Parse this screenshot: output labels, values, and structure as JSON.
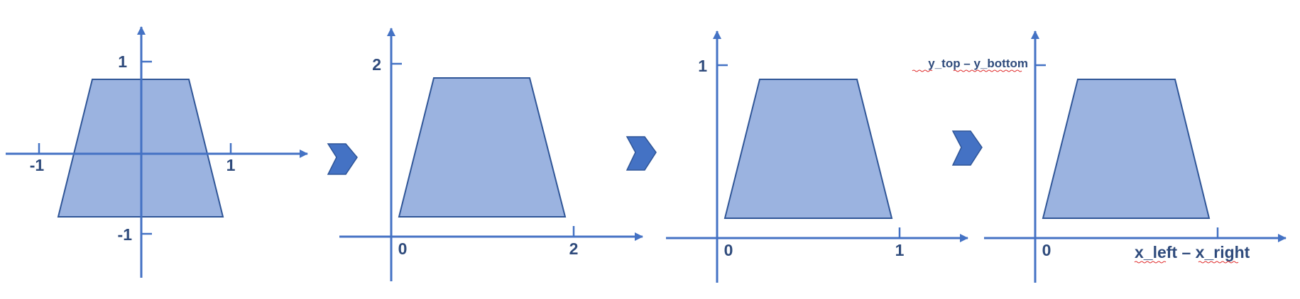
{
  "panels": [
    {
      "name": "panel-1",
      "labels": {
        "y_top": "1",
        "y_bottom": "-1",
        "x_left": "-1",
        "x_right": "1"
      }
    },
    {
      "name": "panel-2",
      "labels": {
        "y_top": "2",
        "origin": "0",
        "x_right": "2"
      }
    },
    {
      "name": "panel-3",
      "labels": {
        "y_top": "1",
        "origin": "0",
        "x_right": "1"
      }
    },
    {
      "name": "panel-4",
      "labels": {
        "y_top": "y_top – y_bottom",
        "origin": "0",
        "x_right": "x_left – x_right"
      }
    }
  ],
  "colors": {
    "axis": "#4472C4",
    "shape_fill": "#9BB3E0",
    "shape_stroke": "#2F5597",
    "label": "#2F4B7C",
    "spellcheck": "#E03030"
  }
}
